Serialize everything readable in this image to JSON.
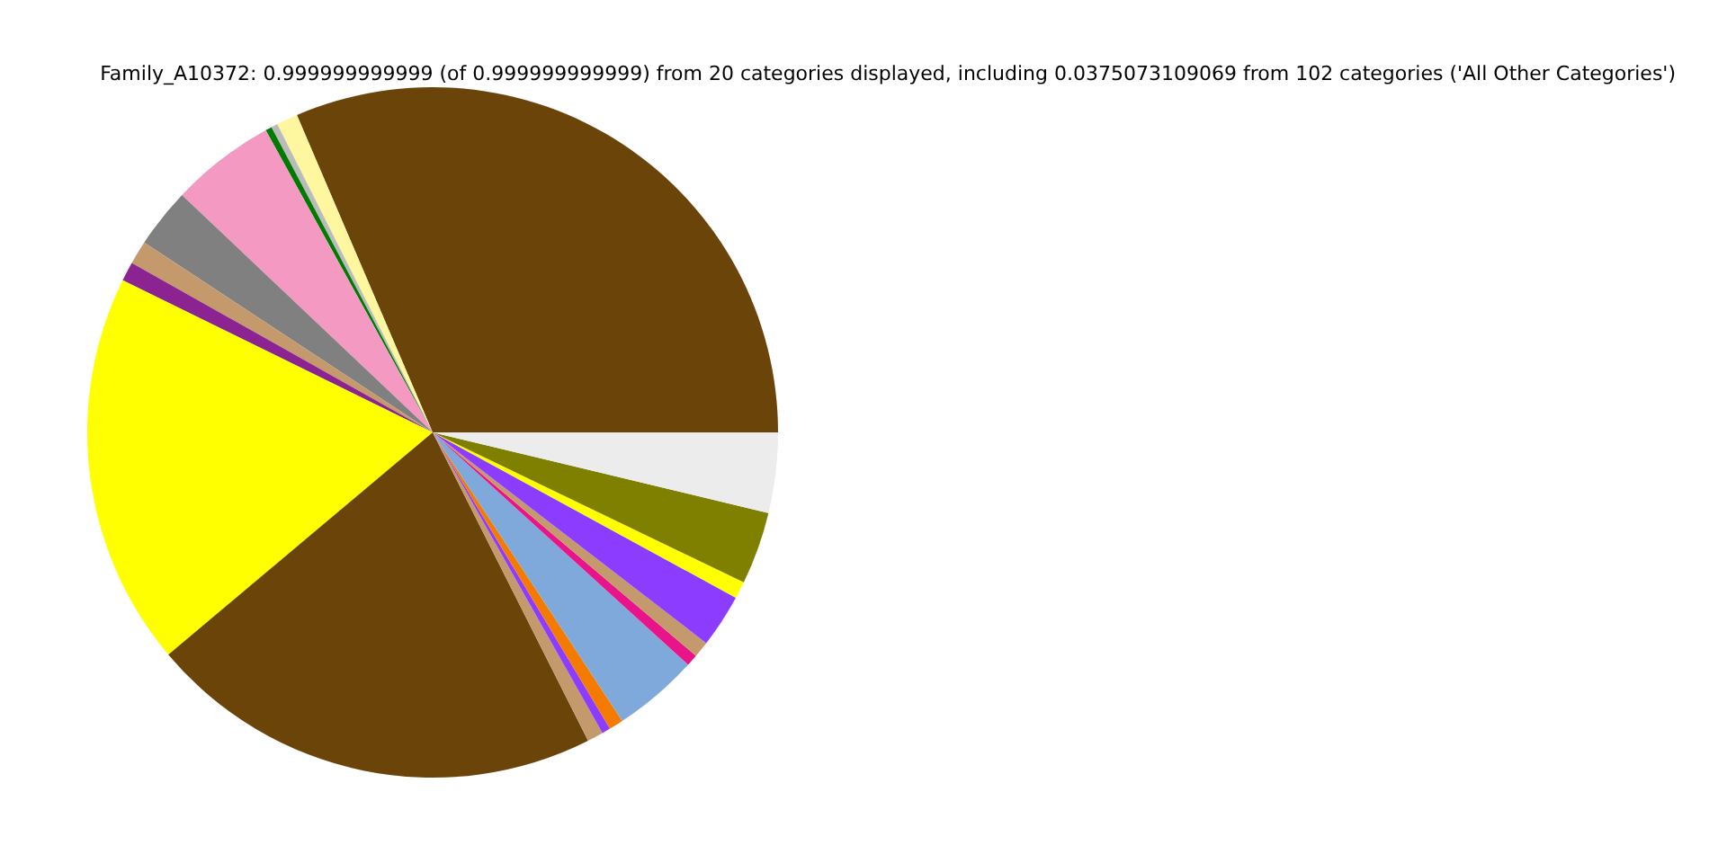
{
  "chart_data": {
    "type": "pie",
    "title": "Family_A10372: 0.999999999999 (of 0.999999999999) from 20 categories displayed, including 0.0375073109069 from 102 categories ('All Other Categories')",
    "categories": [
      null,
      null,
      null,
      null,
      null,
      null,
      null,
      null,
      null,
      null,
      null,
      null,
      null,
      null,
      null,
      null,
      null,
      null,
      null,
      null
    ],
    "values": [
      31.43,
      1.0,
      0.3,
      0.3,
      4.9,
      2.8,
      1.1,
      0.9,
      18.4,
      21.3,
      0.75,
      0.4,
      0.67,
      4.0,
      0.55,
      0.75,
      2.5,
      0.8,
      3.4,
      3.75
    ],
    "colors": [
      "#6b440a",
      "#fff7a0",
      "#bbbbbb",
      "#007a00",
      "#f49ac2",
      "#808080",
      "#c49a6c",
      "#8b2390",
      "#ffff00",
      "#6b440a",
      "#c49a6c",
      "#8c3cff",
      "#f47a00",
      "#7fa9da",
      "#e8158a",
      "#c49a6c",
      "#8c3cff",
      "#ffff00",
      "#808000",
      "#ececec"
    ]
  }
}
